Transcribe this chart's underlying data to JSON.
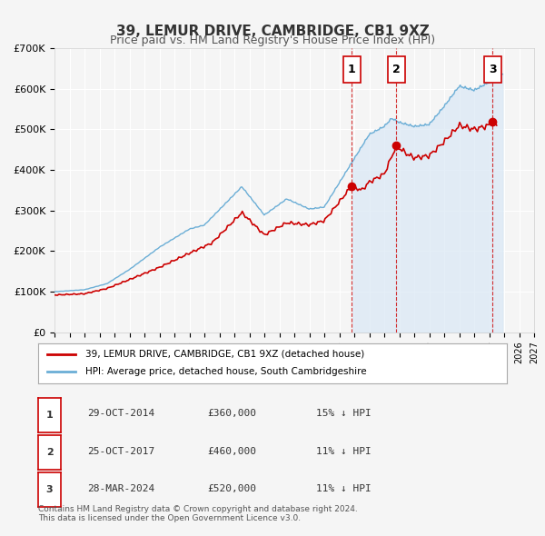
{
  "title": "39, LEMUR DRIVE, CAMBRIDGE, CB1 9XZ",
  "subtitle": "Price paid vs. HM Land Registry's House Price Index (HPI)",
  "ylabel": "",
  "ylim": [
    0,
    700000
  ],
  "yticks": [
    0,
    100000,
    200000,
    300000,
    400000,
    500000,
    600000,
    700000
  ],
  "ytick_labels": [
    "£0",
    "£100K",
    "£200K",
    "£300K",
    "£400K",
    "£500K",
    "£600K",
    "£700K"
  ],
  "xlim_start": 1995.0,
  "xlim_end": 2027.0,
  "hpi_color": "#6baed6",
  "price_color": "#cc0000",
  "sale_marker_color": "#cc0000",
  "transaction_label_bg": "#ffffff",
  "transaction_label_border": "#cc0000",
  "sale_dates_num": [
    2014.831,
    2017.814,
    2024.24
  ],
  "sale_prices": [
    360000,
    460000,
    520000
  ],
  "sale_labels": [
    "1",
    "2",
    "3"
  ],
  "sale_date_strings": [
    "29-OCT-2014",
    "25-OCT-2017",
    "28-MAR-2024"
  ],
  "sale_price_strings": [
    "£360,000",
    "£460,000",
    "£520,000"
  ],
  "sale_hpi_strings": [
    "15% ↓ HPI",
    "11% ↓ HPI",
    "11% ↓ HPI"
  ],
  "shaded_region_start": 2014.831,
  "shaded_region_end": 2025.0,
  "shaded_color": "#d9e8f5",
  "legend_label_price": "39, LEMUR DRIVE, CAMBRIDGE, CB1 9XZ (detached house)",
  "legend_label_hpi": "HPI: Average price, detached house, South Cambridgeshire",
  "footnote": "Contains HM Land Registry data © Crown copyright and database right 2024.\nThis data is licensed under the Open Government Licence v3.0.",
  "background_color": "#f5f5f5",
  "grid_color": "#ffffff",
  "title_fontsize": 11,
  "subtitle_fontsize": 9
}
